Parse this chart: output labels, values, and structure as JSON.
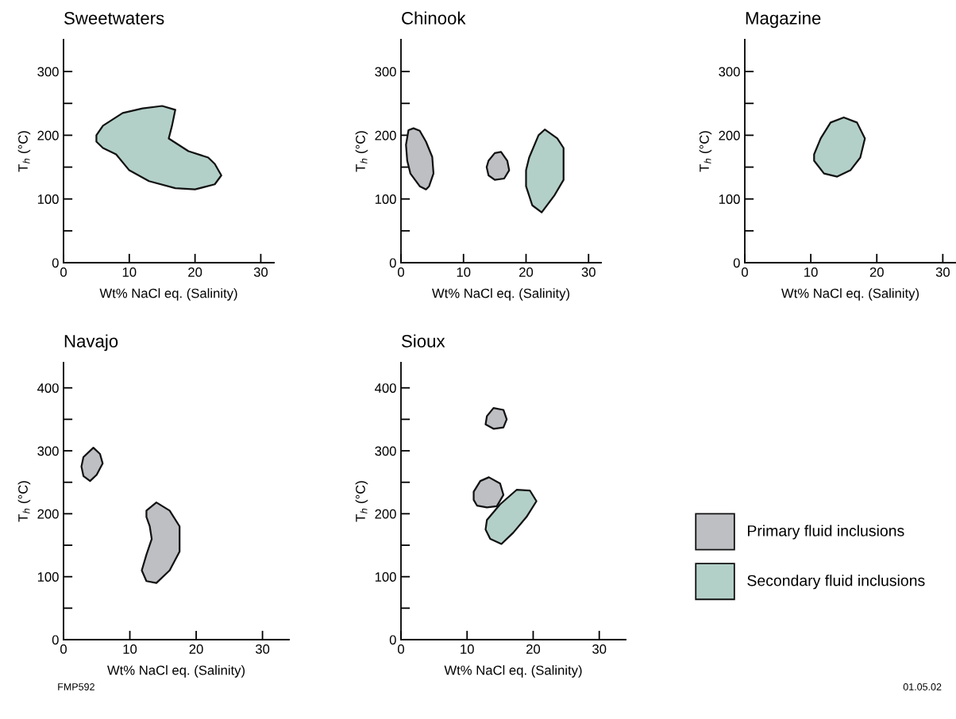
{
  "chart_data": [
    {
      "type": "area",
      "title": "Sweetwaters",
      "xlabel": "Wt% NaCl eq. (Salinity)",
      "ylabel": "T$_{h}$ (°C)",
      "xlim": [
        0,
        32
      ],
      "ylim": [
        0,
        350
      ],
      "xticks": [
        0,
        10,
        20,
        30
      ],
      "yticks": [
        0,
        {
          "value": 50,
          "label": null
        },
        100,
        {
          "value": 150,
          "label": null
        },
        200,
        {
          "value": 250,
          "label": null
        },
        300
      ],
      "grid": false,
      "legend": false,
      "series": [
        {
          "color": "#b3d0c8",
          "x": [
            5,
            6,
            9,
            12,
            15,
            17,
            16.5,
            16,
            19,
            22,
            23,
            24,
            23,
            20,
            17,
            13,
            10,
            8,
            6,
            5
          ],
          "values": [
            200,
            215,
            235,
            242,
            246,
            240,
            215,
            195,
            175,
            165,
            155,
            137,
            123,
            115,
            117,
            128,
            145,
            170,
            180,
            190
          ]
        }
      ]
    },
    {
      "type": "area",
      "title": "Chinook",
      "xlabel": "Wt% NaCl eq. (Salinity)",
      "ylabel": "T$_{h}$ (°C)",
      "xlim": [
        0,
        32
      ],
      "ylim": [
        0,
        350
      ],
      "xticks": [
        0,
        10,
        20,
        30
      ],
      "yticks": [
        0,
        {
          "value": 50,
          "label": null
        },
        100,
        {
          "value": 150,
          "label": null
        },
        200,
        {
          "value": 250,
          "label": null
        },
        300
      ],
      "grid": false,
      "legend": false,
      "series": [
        {
          "color": "#bdbfc3",
          "x": [
            2,
            3,
            4,
            5,
            5.2,
            4.5,
            4,
            3,
            1.5,
            1,
            0.8,
            1.2
          ],
          "values": [
            211,
            207,
            190,
            166,
            140,
            120,
            115,
            120,
            140,
            160,
            185,
            208
          ]
        },
        {
          "color": "#bdbfc3",
          "x": [
            14,
            15,
            16,
            17,
            17.3,
            16.5,
            15,
            14,
            13.7
          ],
          "values": [
            160,
            172,
            174,
            160,
            145,
            132,
            130,
            137,
            150
          ]
        },
        {
          "color": "#b3d0c8",
          "x": [
            20.5,
            22,
            23,
            25,
            26,
            26,
            24.5,
            22.5,
            21,
            20,
            20
          ],
          "values": [
            165,
            200,
            209,
            195,
            180,
            130,
            105,
            79,
            90,
            120,
            145
          ]
        }
      ]
    },
    {
      "type": "area",
      "title": "Magazine",
      "xlabel": "Wt% NaCl eq. (Salinity)",
      "ylabel": "T$_{h}$ (°C)",
      "xlim": [
        0,
        32
      ],
      "ylim": [
        0,
        350
      ],
      "xticks": [
        0,
        10,
        20,
        30
      ],
      "yticks": [
        0,
        {
          "value": 50,
          "label": null
        },
        100,
        {
          "value": 150,
          "label": null
        },
        200,
        {
          "value": 250,
          "label": null
        },
        300
      ],
      "grid": false,
      "legend": false,
      "series": [
        {
          "color": "#b3d0c8",
          "x": [
            10.5,
            11.5,
            13,
            15,
            17,
            18.2,
            17.5,
            16,
            14,
            12,
            10.5
          ],
          "values": [
            170,
            195,
            220,
            228,
            220,
            195,
            165,
            145,
            135,
            140,
            160
          ]
        }
      ]
    },
    {
      "type": "area",
      "title": "Navajo",
      "xlabel": "Wt% NaCl eq. (Salinity)",
      "ylabel": "T$_{h}$ (°C)",
      "xlim": [
        0,
        34
      ],
      "ylim": [
        0,
        440
      ],
      "xticks": [
        0,
        10,
        20,
        30
      ],
      "yticks": [
        0,
        {
          "value": 50,
          "label": null
        },
        100,
        {
          "value": 150,
          "label": null
        },
        200,
        {
          "value": 250,
          "label": null
        },
        300,
        {
          "value": 350,
          "label": null
        },
        400
      ],
      "grid": false,
      "legend": false,
      "series": [
        {
          "color": "#bdbfc3",
          "x": [
            3,
            4.5,
            5.5,
            5.9,
            5,
            4,
            3,
            2.7
          ],
          "values": [
            290,
            305,
            295,
            280,
            262,
            252,
            260,
            275
          ]
        },
        {
          "color": "#bdbfc3",
          "x": [
            12.5,
            14,
            16,
            17.5,
            17.5,
            16,
            14,
            12.5,
            11.8,
            12.5,
            13.3,
            13,
            12.5
          ],
          "values": [
            205,
            218,
            205,
            180,
            140,
            110,
            90,
            93,
            110,
            135,
            160,
            180,
            195
          ]
        }
      ]
    },
    {
      "type": "area",
      "title": "Sioux",
      "xlabel": "Wt% NaCl eq. (Salinity)",
      "ylabel": "T$_{h}$ (°C)",
      "xlim": [
        0,
        34
      ],
      "ylim": [
        0,
        440
      ],
      "xticks": [
        0,
        10,
        20,
        30
      ],
      "yticks": [
        0,
        {
          "value": 50,
          "label": null
        },
        100,
        {
          "value": 150,
          "label": null
        },
        200,
        {
          "value": 250,
          "label": null
        },
        300,
        {
          "value": 350,
          "label": null
        },
        400
      ],
      "grid": false,
      "legend": "right",
      "annotations": [
        "FMP592",
        "01.05.02"
      ],
      "series": [
        {
          "name": "Primary fluid inclusions",
          "color": "#bdbfc3",
          "x": [
            13,
            14,
            15.5,
            16,
            15.5,
            14,
            12.8
          ],
          "values": [
            355,
            368,
            365,
            350,
            337,
            335,
            342
          ]
        },
        {
          "color": "#bdbfc3",
          "x": [
            11,
            12,
            13.3,
            15,
            15.5,
            14.5,
            13,
            11.5,
            11
          ],
          "values": [
            235,
            252,
            258,
            248,
            230,
            212,
            210,
            213,
            222
          ]
        },
        {
          "name": "Secondary fluid inclusions",
          "color": "#b3d0c8",
          "x": [
            13,
            15,
            17.5,
            19.5,
            20.5,
            19,
            17,
            15.2,
            13.5,
            12.8
          ],
          "values": [
            190,
            215,
            238,
            237,
            220,
            195,
            170,
            152,
            160,
            175
          ]
        }
      ]
    }
  ]
}
